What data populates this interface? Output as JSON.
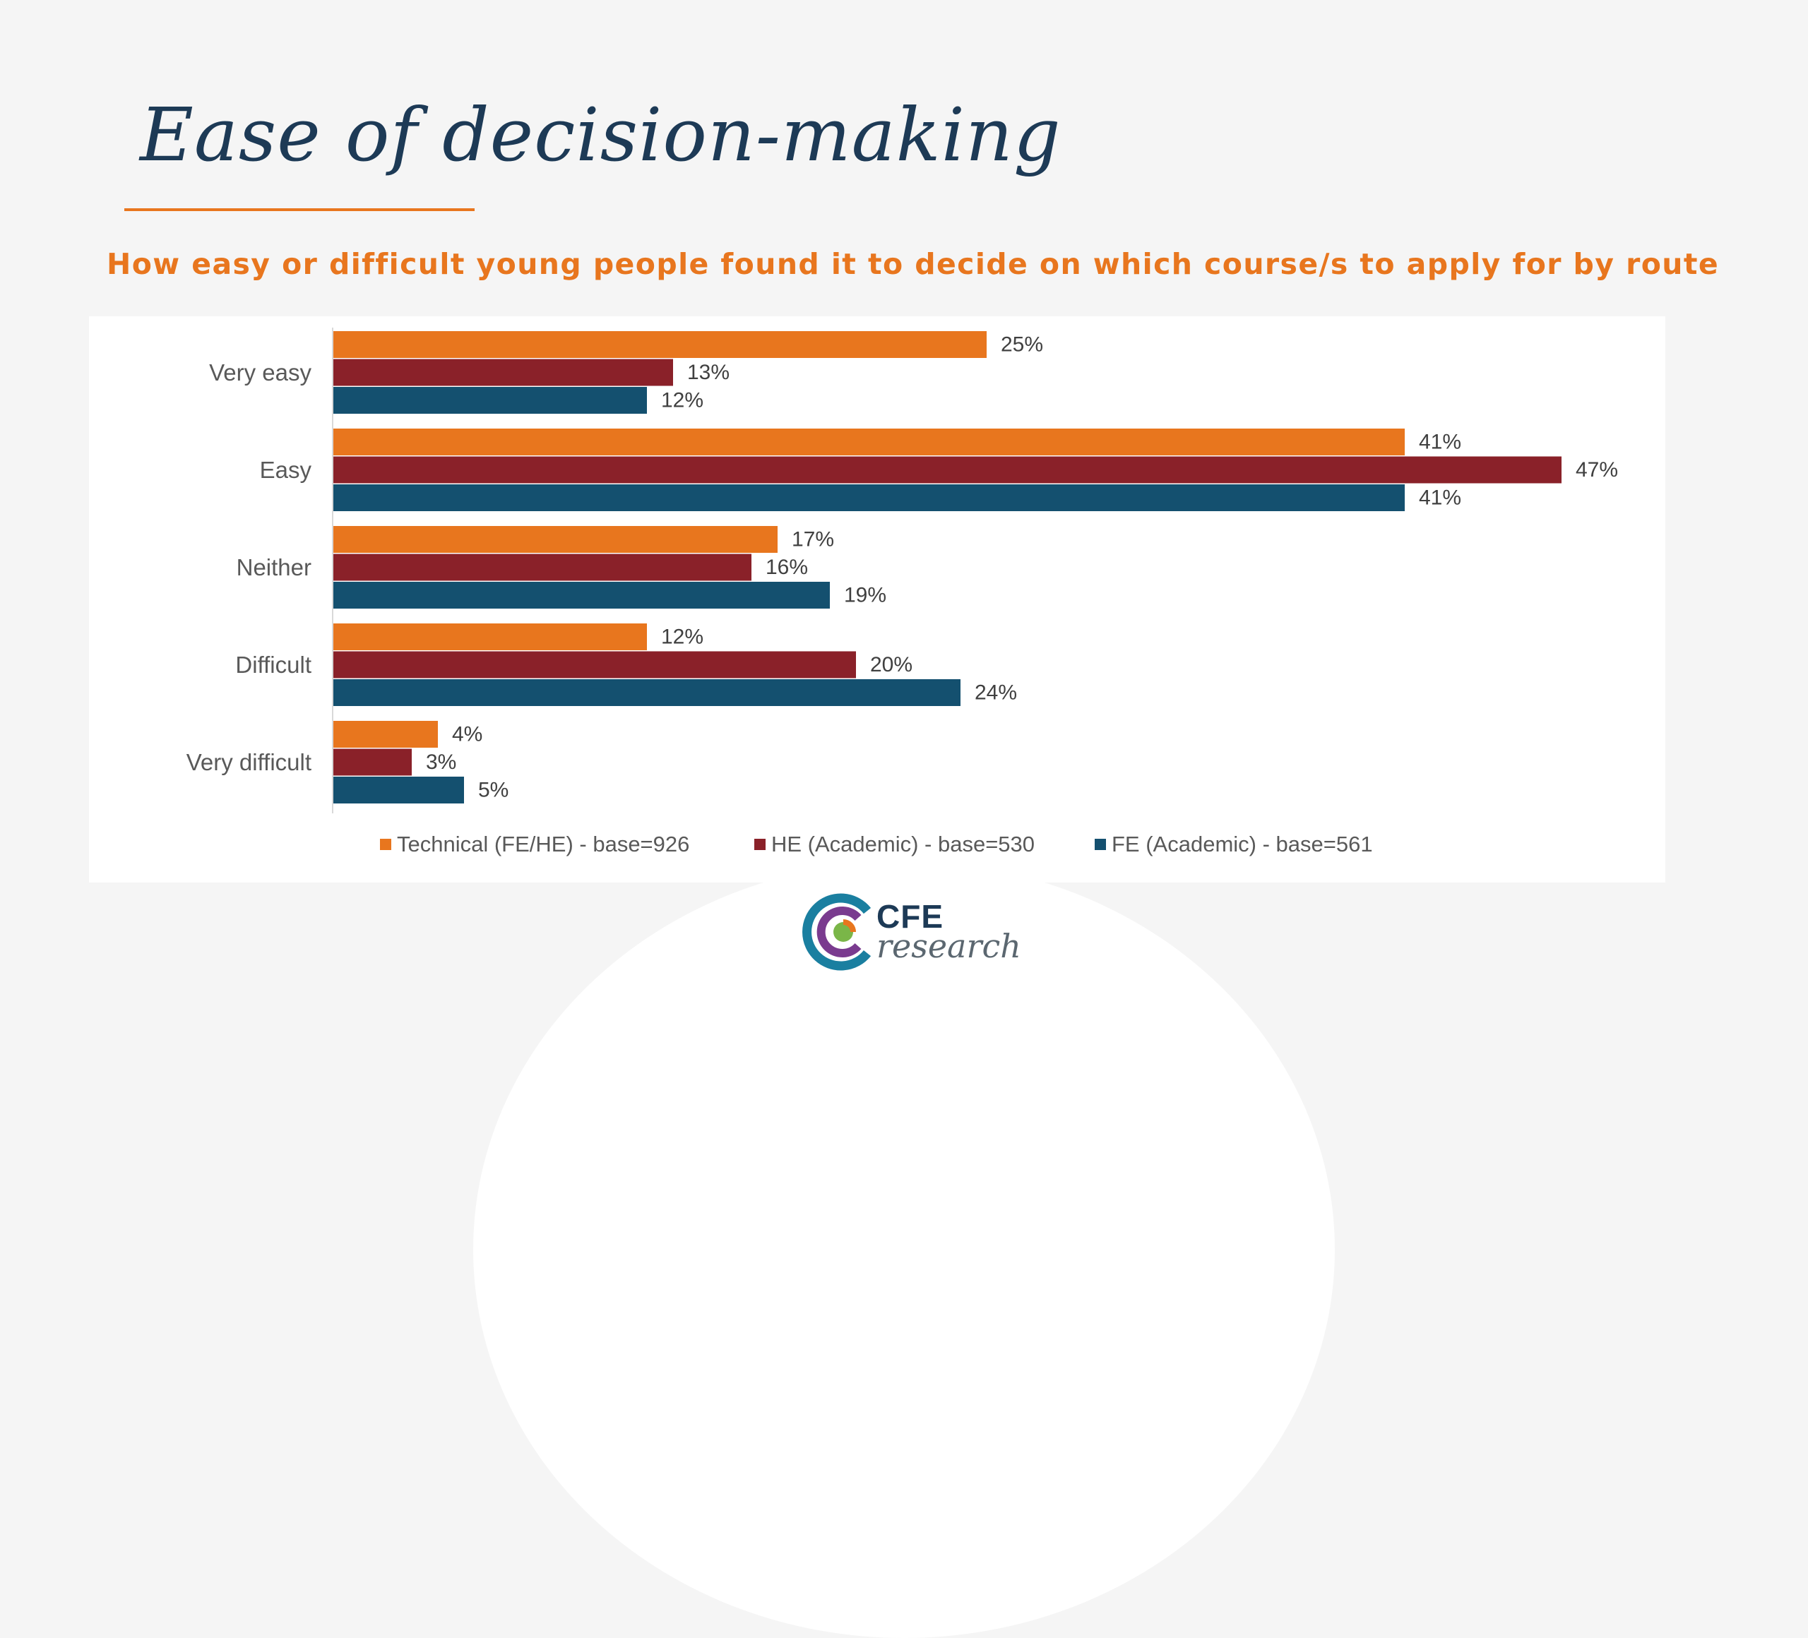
{
  "slide": {
    "title": "Ease of decision-making",
    "subtitle": "How easy or difficult young people found it to decide on which course/s to apply for by route"
  },
  "chart_data": {
    "type": "bar",
    "orientation": "horizontal",
    "categories": [
      "Very easy",
      "Easy",
      "Neither",
      "Difficult",
      "Very difficult"
    ],
    "series": [
      {
        "name": "Technical (FE/HE) - base=926",
        "color": "#e8761e",
        "values": [
          25,
          41,
          17,
          12,
          4
        ],
        "labels": [
          "25%",
          "41%",
          "17%",
          "12%",
          "4%"
        ]
      },
      {
        "name": "HE (Academic) - base=530",
        "color": "#8a2129",
        "values": [
          13,
          47,
          16,
          20,
          3
        ],
        "labels": [
          "13%",
          "47%",
          "16%",
          "20%",
          "3%"
        ]
      },
      {
        "name": "FE (Academic) - base=561",
        "color": "#14506f",
        "values": [
          12,
          41,
          19,
          24,
          5
        ],
        "labels": [
          "12%",
          "41%",
          "19%",
          "24%",
          "5%"
        ]
      }
    ],
    "xlim": [
      0,
      50
    ],
    "grid": false,
    "legend_position": "bottom"
  },
  "logo": {
    "text_top": "CFE",
    "text_bottom": "research",
    "colors": {
      "navy": "#1d3a56",
      "orange": "#e8761e",
      "purple": "#7a3b8f",
      "green": "#7ab648",
      "teal": "#1a7fa0"
    }
  }
}
